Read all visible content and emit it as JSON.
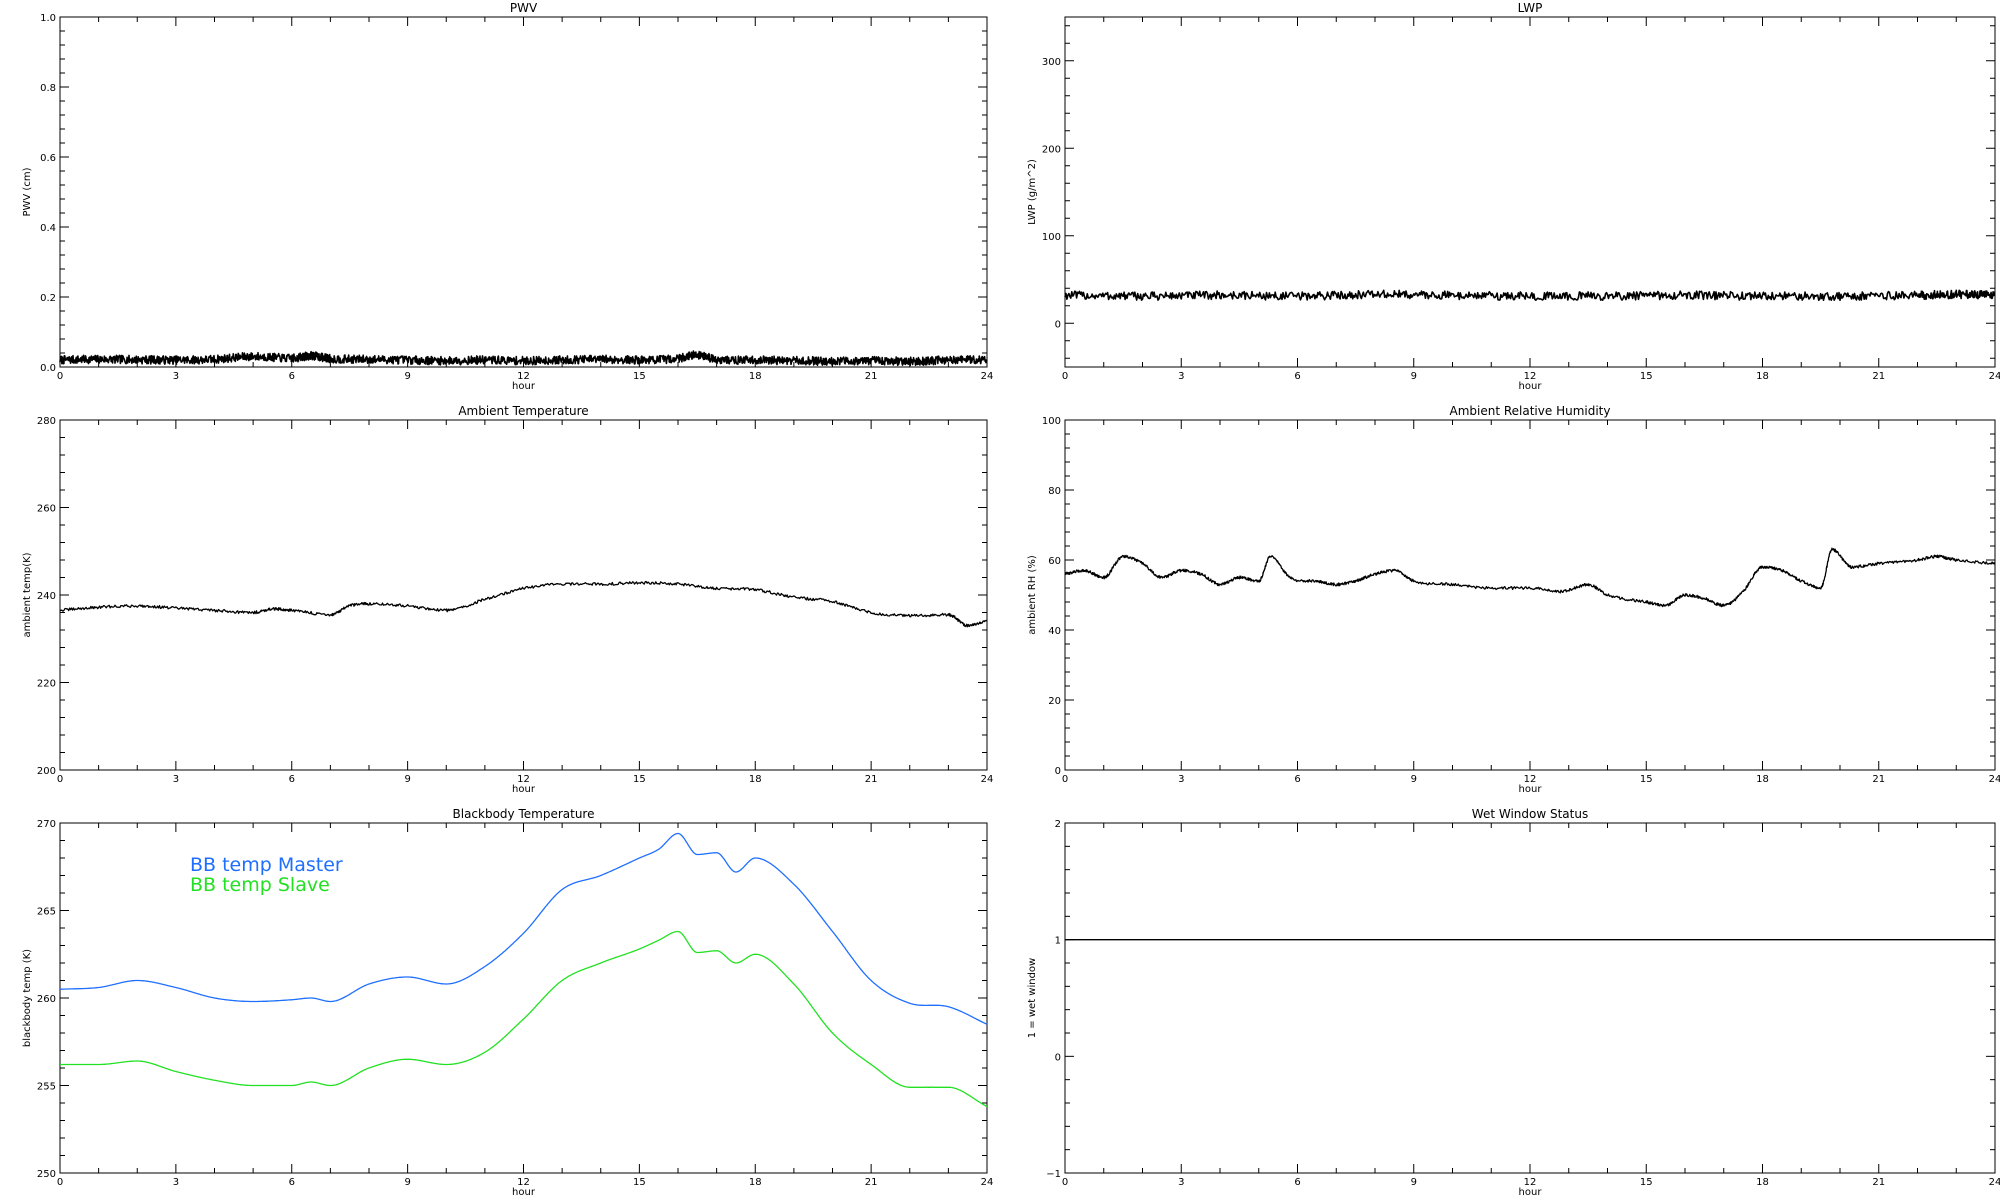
{
  "chart_data": [
    {
      "id": "pwv",
      "type": "line",
      "title": "PWV",
      "xlabel": "hour",
      "ylabel": "PWV (cm)",
      "xlim": [
        0,
        24
      ],
      "ylim": [
        0,
        1.0
      ],
      "xticks": [
        0,
        3,
        6,
        9,
        12,
        15,
        18,
        21,
        24
      ],
      "xtick_labels": [
        "0",
        "3",
        "6",
        "9",
        "12",
        "15",
        "18",
        "21",
        "24"
      ],
      "yticks": [
        0,
        0.2,
        0.4,
        0.6,
        0.8,
        1.0
      ],
      "ytick_labels": [
        "0.0",
        "0.2",
        "0.4",
        "0.6",
        "0.8",
        "1.0"
      ],
      "grid": false,
      "series": [
        {
          "color": "#000000",
          "noise": "heavy",
          "x": [
            0,
            1,
            2,
            3,
            4,
            5,
            6,
            6.5,
            7,
            8,
            9,
            10,
            11,
            12,
            13,
            14,
            15,
            16,
            16.5,
            17,
            18,
            19,
            20,
            21,
            22,
            23,
            24
          ],
          "y": [
            0.02,
            0.022,
            0.021,
            0.02,
            0.022,
            0.03,
            0.025,
            0.032,
            0.024,
            0.022,
            0.02,
            0.018,
            0.02,
            0.018,
            0.02,
            0.022,
            0.02,
            0.025,
            0.035,
            0.022,
            0.02,
            0.018,
            0.017,
            0.018,
            0.016,
            0.02,
            0.022
          ]
        }
      ]
    },
    {
      "id": "lwp",
      "type": "line",
      "title": "LWP",
      "xlabel": "hour",
      "ylabel": "LWP (g/m^2)",
      "xlim": [
        0,
        24
      ],
      "ylim": [
        -50,
        350
      ],
      "xticks": [
        0,
        3,
        6,
        9,
        12,
        15,
        18,
        21,
        24
      ],
      "xtick_labels": [
        "0",
        "3",
        "6",
        "9",
        "12",
        "15",
        "18",
        "21",
        "24"
      ],
      "yticks": [
        0,
        100,
        200,
        300
      ],
      "ytick_labels": [
        "0",
        "100",
        "200",
        "300"
      ],
      "grid": false,
      "series": [
        {
          "color": "#000000",
          "noise": "heavy",
          "x": [
            0,
            2,
            4,
            6,
            8,
            10,
            12,
            14,
            16,
            18,
            20,
            22,
            23,
            24
          ],
          "y": [
            32,
            31,
            32,
            31,
            33,
            32,
            31,
            31,
            32,
            31,
            31,
            32,
            33,
            32
          ]
        }
      ]
    },
    {
      "id": "ambient-temp",
      "type": "line",
      "title": "Ambient Temperature",
      "xlabel": "hour",
      "ylabel": "ambient temp(K)",
      "xlim": [
        0,
        24
      ],
      "ylim": [
        200,
        280
      ],
      "xticks": [
        0,
        3,
        6,
        9,
        12,
        15,
        18,
        21,
        24
      ],
      "xtick_labels": [
        "0",
        "3",
        "6",
        "9",
        "12",
        "15",
        "18",
        "21",
        "24"
      ],
      "yticks": [
        200,
        220,
        240,
        260,
        280
      ],
      "ytick_labels": [
        "200",
        "220",
        "240",
        "260",
        "280"
      ],
      "grid": false,
      "series": [
        {
          "color": "#000000",
          "noise": "light",
          "x": [
            0,
            1,
            2,
            3,
            4,
            5,
            5.5,
            6,
            7,
            7.5,
            8,
            9,
            10,
            11,
            12,
            13,
            14,
            15,
            16,
            17,
            18,
            19,
            20,
            21,
            22,
            23,
            23.5,
            24
          ],
          "y": [
            236.5,
            237.2,
            237.5,
            237,
            236.5,
            236,
            236.8,
            236.5,
            235.5,
            237.5,
            238,
            237.5,
            236.5,
            239,
            241.5,
            242.5,
            242.5,
            242.8,
            242.5,
            241.5,
            241.2,
            239.5,
            238.5,
            236,
            235.3,
            235.5,
            233,
            234
          ]
        }
      ]
    },
    {
      "id": "ambient-rh",
      "type": "line",
      "title": "Ambient Relative Humidity",
      "xlabel": "hour",
      "ylabel": "ambient RH (%)",
      "xlim": [
        0,
        24
      ],
      "ylim": [
        0,
        100
      ],
      "xticks": [
        0,
        3,
        6,
        9,
        12,
        15,
        18,
        21,
        24
      ],
      "xtick_labels": [
        "0",
        "3",
        "6",
        "9",
        "12",
        "15",
        "18",
        "21",
        "24"
      ],
      "yticks": [
        0,
        20,
        40,
        60,
        80,
        100
      ],
      "ytick_labels": [
        "0",
        "20",
        "40",
        "60",
        "80",
        "100"
      ],
      "grid": false,
      "series": [
        {
          "color": "#000000",
          "noise": "light",
          "x": [
            0,
            0.5,
            1,
            1.5,
            2,
            2.5,
            3,
            3.5,
            4,
            4.5,
            5,
            5.3,
            5.8,
            6.5,
            7,
            7.5,
            8,
            8.5,
            9,
            10,
            11,
            12,
            12.8,
            13.5,
            14,
            15,
            15.5,
            16,
            16.5,
            17,
            17.5,
            18,
            18.5,
            19,
            19.5,
            19.8,
            20.3,
            21,
            22,
            22.5,
            23,
            24
          ],
          "y": [
            56,
            57,
            55,
            61,
            59,
            55,
            57,
            56,
            53,
            55,
            54,
            61,
            55,
            54,
            53,
            54,
            56,
            57,
            54,
            53,
            52,
            52,
            51,
            53,
            50,
            48,
            47,
            50,
            49,
            47,
            51,
            58,
            57,
            54,
            52,
            63,
            58,
            59,
            60,
            61,
            60,
            59
          ]
        }
      ]
    },
    {
      "id": "blackbody-temp",
      "type": "line",
      "title": "Blackbody Temperature",
      "xlabel": "hour",
      "ylabel": "blackbody temp (K)",
      "xlim": [
        0,
        24
      ],
      "ylim": [
        250,
        270
      ],
      "xticks": [
        0,
        3,
        6,
        9,
        12,
        15,
        18,
        21,
        24
      ],
      "xtick_labels": [
        "0",
        "3",
        "6",
        "9",
        "12",
        "15",
        "18",
        "21",
        "24"
      ],
      "yticks": [
        250,
        255,
        260,
        265,
        270
      ],
      "ytick_labels": [
        "250",
        "255",
        "260",
        "265",
        "270"
      ],
      "grid": false,
      "legend": "top-left",
      "series": [
        {
          "name": "BB temp Master",
          "color": "#1f6fff",
          "x": [
            0,
            1,
            2,
            3,
            4,
            5,
            6,
            6.5,
            7,
            8,
            9,
            10,
            11,
            12,
            13,
            14,
            15,
            15.5,
            16,
            16.5,
            17,
            17.5,
            18,
            19,
            20,
            21,
            22,
            23,
            24
          ],
          "y": [
            260.5,
            260.6,
            261,
            260.6,
            260.0,
            259.8,
            259.9,
            260.0,
            259.8,
            260.8,
            261.2,
            260.8,
            261.8,
            263.7,
            266.2,
            267.0,
            268.0,
            268.5,
            269.4,
            268.2,
            268.3,
            267.2,
            268.0,
            266.5,
            263.8,
            261.0,
            259.7,
            259.5,
            258.5
          ]
        },
        {
          "name": "BB temp Slave",
          "color": "#22e022",
          "x": [
            0,
            1,
            2,
            3,
            4,
            5,
            6,
            6.5,
            7,
            8,
            9,
            10,
            11,
            12,
            13,
            14,
            15,
            15.5,
            16,
            16.5,
            17,
            17.5,
            18,
            19,
            20,
            21,
            22,
            23,
            24
          ],
          "y": [
            256.2,
            256.2,
            256.4,
            255.8,
            255.3,
            255.0,
            255.0,
            255.2,
            255.0,
            256.0,
            256.5,
            256.2,
            256.9,
            258.8,
            261.0,
            262.0,
            262.8,
            263.3,
            263.8,
            262.6,
            262.7,
            262.0,
            262.5,
            260.8,
            258.0,
            256.2,
            254.9,
            254.9,
            253.8
          ]
        }
      ]
    },
    {
      "id": "wet-window",
      "type": "line",
      "title": "Wet Window Status",
      "xlabel": "hour",
      "ylabel": "1 = wet window",
      "xlim": [
        0,
        24
      ],
      "ylim": [
        -1,
        2
      ],
      "xticks": [
        0,
        3,
        6,
        9,
        12,
        15,
        18,
        21,
        24
      ],
      "xtick_labels": [
        "0",
        "3",
        "6",
        "9",
        "12",
        "15",
        "18",
        "21",
        "24"
      ],
      "yticks": [
        -1,
        0,
        1,
        2
      ],
      "ytick_labels": [
        "−1",
        "0",
        "1",
        "2"
      ],
      "grid": false,
      "series": [
        {
          "color": "#000000",
          "x": [
            0,
            24
          ],
          "y": [
            1,
            1
          ]
        }
      ]
    }
  ]
}
